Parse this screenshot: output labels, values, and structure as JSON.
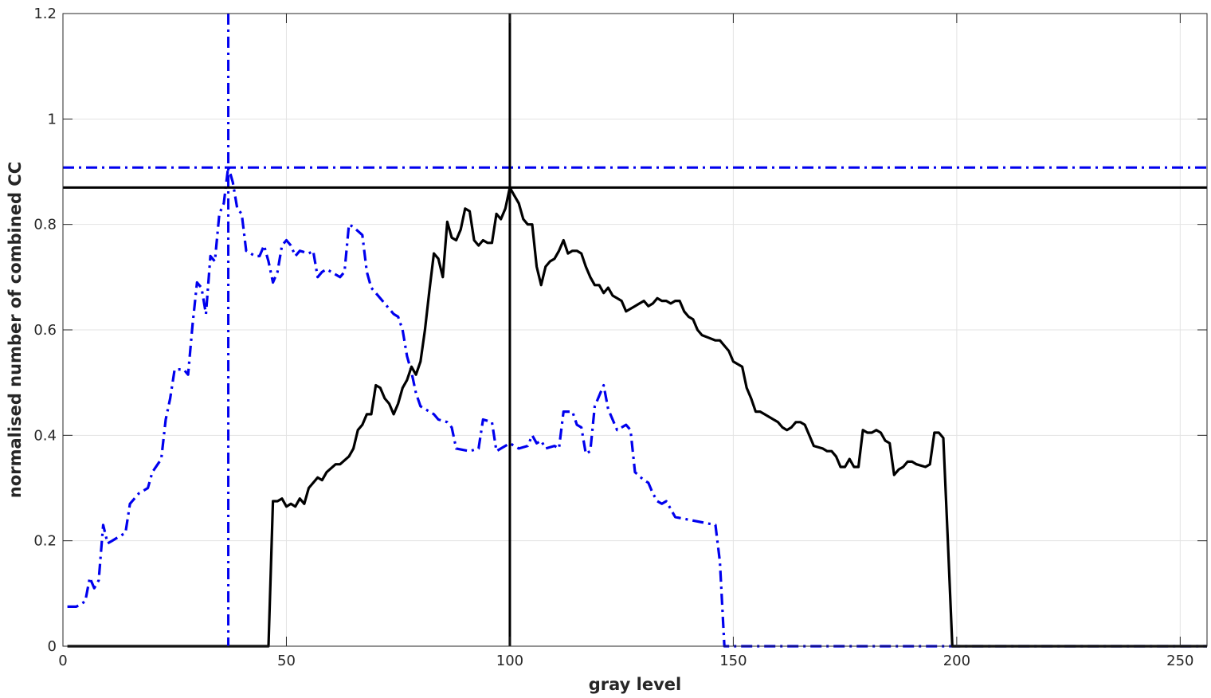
{
  "chart_data": {
    "type": "line",
    "title": "",
    "xlabel": "gray level",
    "ylabel": "normalised number of combined CC",
    "xlim": [
      0,
      256
    ],
    "ylim": [
      0,
      1.2
    ],
    "grid": true,
    "x_ticks": [
      0,
      50,
      100,
      150,
      200,
      250
    ],
    "y_ticks": [
      0,
      0.2,
      0.4,
      0.6,
      0.8,
      1,
      1.2
    ],
    "x_tick_labels": [
      "0",
      "50",
      "100",
      "150",
      "200",
      "250"
    ],
    "y_tick_labels": [
      "0",
      "0.2",
      "0.4",
      "0.6",
      "0.8",
      "1",
      "1.2"
    ],
    "series": [
      {
        "style": "dash-dot",
        "color": "#0000ee",
        "points": [
          [
            1,
            0.075
          ],
          [
            3,
            0.075
          ],
          [
            5,
            0.085
          ],
          [
            6,
            0.13
          ],
          [
            7,
            0.11
          ],
          [
            8,
            0.125
          ],
          [
            9,
            0.23
          ],
          [
            10,
            0.195
          ],
          [
            11,
            0.2
          ],
          [
            14,
            0.215
          ],
          [
            15,
            0.27
          ],
          [
            17,
            0.29
          ],
          [
            19,
            0.3
          ],
          [
            20,
            0.33
          ],
          [
            22,
            0.355
          ],
          [
            23,
            0.43
          ],
          [
            24,
            0.47
          ],
          [
            25,
            0.525
          ],
          [
            27,
            0.525
          ],
          [
            28,
            0.515
          ],
          [
            29,
            0.61
          ],
          [
            30,
            0.69
          ],
          [
            31,
            0.68
          ],
          [
            32,
            0.63
          ],
          [
            33,
            0.74
          ],
          [
            34,
            0.73
          ],
          [
            35,
            0.82
          ],
          [
            36,
            0.84
          ],
          [
            37,
            0.91
          ],
          [
            38,
            0.88
          ],
          [
            39,
            0.83
          ],
          [
            40,
            0.82
          ],
          [
            41,
            0.75
          ],
          [
            43,
            0.74
          ],
          [
            44,
            0.74
          ],
          [
            45,
            0.76
          ],
          [
            46,
            0.73
          ],
          [
            47,
            0.69
          ],
          [
            48,
            0.71
          ],
          [
            49,
            0.76
          ],
          [
            50,
            0.77
          ],
          [
            51,
            0.76
          ],
          [
            52,
            0.74
          ],
          [
            53,
            0.75
          ],
          [
            55,
            0.745
          ],
          [
            56,
            0.75
          ],
          [
            57,
            0.7
          ],
          [
            58,
            0.71
          ],
          [
            59,
            0.715
          ],
          [
            60,
            0.71
          ],
          [
            62,
            0.7
          ],
          [
            63,
            0.71
          ],
          [
            64,
            0.8
          ],
          [
            65,
            0.795
          ],
          [
            67,
            0.78
          ],
          [
            68,
            0.71
          ],
          [
            69,
            0.68
          ],
          [
            71,
            0.66
          ],
          [
            73,
            0.64
          ],
          [
            74,
            0.63
          ],
          [
            75,
            0.625
          ],
          [
            76,
            0.6
          ],
          [
            77,
            0.55
          ],
          [
            78,
            0.52
          ],
          [
            79,
            0.48
          ],
          [
            80,
            0.455
          ],
          [
            83,
            0.44
          ],
          [
            84,
            0.43
          ],
          [
            86,
            0.425
          ],
          [
            87,
            0.415
          ],
          [
            88,
            0.375
          ],
          [
            91,
            0.37
          ],
          [
            93,
            0.375
          ],
          [
            94,
            0.43
          ],
          [
            96,
            0.425
          ],
          [
            97,
            0.37
          ],
          [
            98,
            0.375
          ],
          [
            99,
            0.38
          ],
          [
            100,
            0.385
          ],
          [
            102,
            0.375
          ],
          [
            104,
            0.38
          ],
          [
            105,
            0.4
          ],
          [
            106,
            0.385
          ],
          [
            107,
            0.39
          ],
          [
            108,
            0.375
          ],
          [
            110,
            0.38
          ],
          [
            111,
            0.375
          ],
          [
            112,
            0.445
          ],
          [
            114,
            0.445
          ],
          [
            115,
            0.42
          ],
          [
            116,
            0.415
          ],
          [
            117,
            0.365
          ],
          [
            118,
            0.37
          ],
          [
            119,
            0.455
          ],
          [
            121,
            0.495
          ],
          [
            122,
            0.45
          ],
          [
            124,
            0.41
          ],
          [
            126,
            0.42
          ],
          [
            127,
            0.41
          ],
          [
            128,
            0.33
          ],
          [
            130,
            0.315
          ],
          [
            131,
            0.31
          ],
          [
            132,
            0.29
          ],
          [
            133,
            0.275
          ],
          [
            134,
            0.27
          ],
          [
            135,
            0.275
          ],
          [
            137,
            0.245
          ],
          [
            140,
            0.24
          ],
          [
            143,
            0.235
          ],
          [
            146,
            0.23
          ],
          [
            147,
            0.16
          ],
          [
            148,
            0.0
          ],
          [
            256,
            0.0
          ]
        ],
        "peak": {
          "x": 37,
          "y": 0.908
        }
      },
      {
        "style": "solid",
        "color": "#000000",
        "points": [
          [
            1,
            0.0
          ],
          [
            46,
            0.0
          ],
          [
            47,
            0.275
          ],
          [
            48,
            0.275
          ],
          [
            49,
            0.28
          ],
          [
            50,
            0.265
          ],
          [
            51,
            0.27
          ],
          [
            52,
            0.265
          ],
          [
            53,
            0.28
          ],
          [
            54,
            0.27
          ],
          [
            55,
            0.3
          ],
          [
            57,
            0.32
          ],
          [
            58,
            0.315
          ],
          [
            59,
            0.33
          ],
          [
            61,
            0.345
          ],
          [
            62,
            0.345
          ],
          [
            64,
            0.36
          ],
          [
            65,
            0.375
          ],
          [
            66,
            0.41
          ],
          [
            67,
            0.42
          ],
          [
            68,
            0.44
          ],
          [
            69,
            0.44
          ],
          [
            70,
            0.495
          ],
          [
            71,
            0.49
          ],
          [
            72,
            0.47
          ],
          [
            73,
            0.46
          ],
          [
            74,
            0.44
          ],
          [
            75,
            0.46
          ],
          [
            76,
            0.49
          ],
          [
            77,
            0.505
          ],
          [
            78,
            0.53
          ],
          [
            79,
            0.515
          ],
          [
            80,
            0.54
          ],
          [
            81,
            0.6
          ],
          [
            82,
            0.675
          ],
          [
            83,
            0.745
          ],
          [
            84,
            0.735
          ],
          [
            85,
            0.7
          ],
          [
            86,
            0.805
          ],
          [
            87,
            0.775
          ],
          [
            88,
            0.77
          ],
          [
            89,
            0.79
          ],
          [
            90,
            0.83
          ],
          [
            91,
            0.825
          ],
          [
            92,
            0.77
          ],
          [
            93,
            0.76
          ],
          [
            94,
            0.77
          ],
          [
            95,
            0.765
          ],
          [
            96,
            0.765
          ],
          [
            97,
            0.82
          ],
          [
            98,
            0.81
          ],
          [
            99,
            0.83
          ],
          [
            100,
            0.87
          ],
          [
            101,
            0.855
          ],
          [
            102,
            0.84
          ],
          [
            103,
            0.81
          ],
          [
            104,
            0.8
          ],
          [
            105,
            0.8
          ],
          [
            106,
            0.72
          ],
          [
            107,
            0.685
          ],
          [
            108,
            0.72
          ],
          [
            109,
            0.73
          ],
          [
            110,
            0.735
          ],
          [
            111,
            0.75
          ],
          [
            112,
            0.77
          ],
          [
            113,
            0.745
          ],
          [
            114,
            0.75
          ],
          [
            115,
            0.75
          ],
          [
            116,
            0.745
          ],
          [
            117,
            0.72
          ],
          [
            118,
            0.7
          ],
          [
            119,
            0.685
          ],
          [
            120,
            0.685
          ],
          [
            121,
            0.67
          ],
          [
            122,
            0.68
          ],
          [
            123,
            0.665
          ],
          [
            124,
            0.66
          ],
          [
            125,
            0.655
          ],
          [
            126,
            0.635
          ],
          [
            127,
            0.64
          ],
          [
            128,
            0.645
          ],
          [
            129,
            0.65
          ],
          [
            130,
            0.655
          ],
          [
            131,
            0.645
          ],
          [
            132,
            0.65
          ],
          [
            133,
            0.66
          ],
          [
            134,
            0.655
          ],
          [
            135,
            0.655
          ],
          [
            136,
            0.65
          ],
          [
            137,
            0.655
          ],
          [
            138,
            0.655
          ],
          [
            139,
            0.635
          ],
          [
            140,
            0.625
          ],
          [
            141,
            0.62
          ],
          [
            142,
            0.6
          ],
          [
            143,
            0.59
          ],
          [
            146,
            0.58
          ],
          [
            147,
            0.58
          ],
          [
            148,
            0.57
          ],
          [
            149,
            0.56
          ],
          [
            150,
            0.54
          ],
          [
            152,
            0.53
          ],
          [
            153,
            0.49
          ],
          [
            154,
            0.47
          ],
          [
            155,
            0.445
          ],
          [
            156,
            0.445
          ],
          [
            157,
            0.44
          ],
          [
            159,
            0.43
          ],
          [
            160,
            0.425
          ],
          [
            161,
            0.415
          ],
          [
            162,
            0.41
          ],
          [
            163,
            0.415
          ],
          [
            164,
            0.425
          ],
          [
            165,
            0.425
          ],
          [
            166,
            0.42
          ],
          [
            167,
            0.4
          ],
          [
            168,
            0.38
          ],
          [
            170,
            0.375
          ],
          [
            171,
            0.37
          ],
          [
            172,
            0.37
          ],
          [
            173,
            0.36
          ],
          [
            174,
            0.34
          ],
          [
            175,
            0.34
          ],
          [
            176,
            0.355
          ],
          [
            177,
            0.34
          ],
          [
            178,
            0.34
          ],
          [
            179,
            0.41
          ],
          [
            180,
            0.405
          ],
          [
            181,
            0.405
          ],
          [
            182,
            0.41
          ],
          [
            183,
            0.405
          ],
          [
            184,
            0.39
          ],
          [
            185,
            0.385
          ],
          [
            186,
            0.325
          ],
          [
            187,
            0.335
          ],
          [
            188,
            0.34
          ],
          [
            189,
            0.35
          ],
          [
            190,
            0.35
          ],
          [
            191,
            0.345
          ],
          [
            193,
            0.34
          ],
          [
            194,
            0.345
          ],
          [
            195,
            0.405
          ],
          [
            196,
            0.405
          ],
          [
            197,
            0.395
          ],
          [
            198,
            0.2
          ],
          [
            199,
            0.0
          ],
          [
            256,
            0.0
          ]
        ],
        "peak": {
          "x": 100,
          "y": 0.87
        }
      }
    ]
  }
}
